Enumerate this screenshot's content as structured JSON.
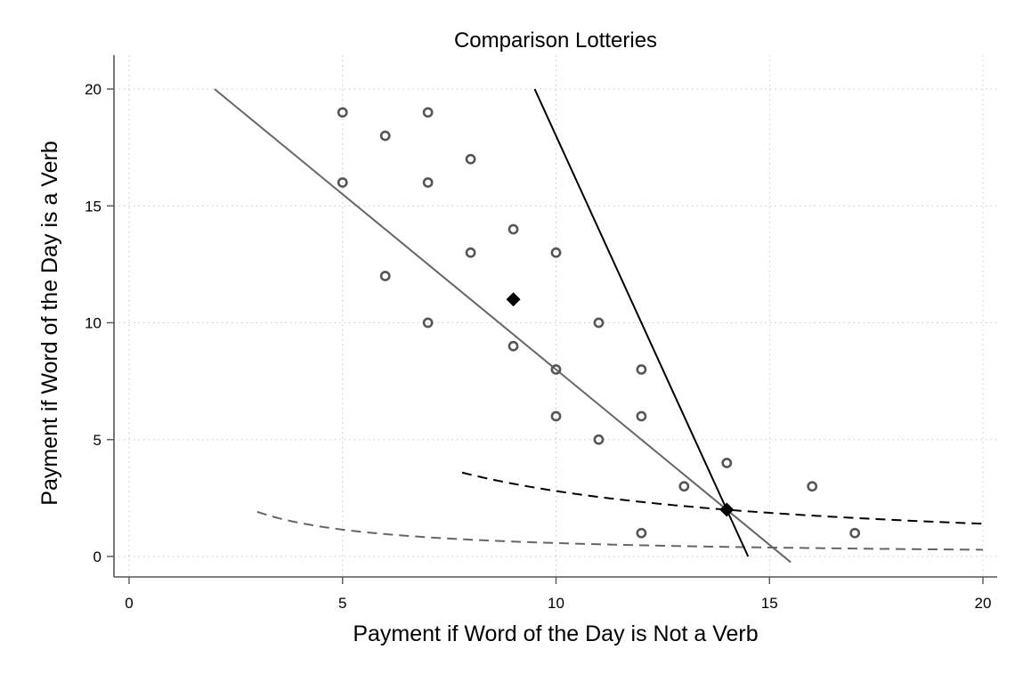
{
  "chart_data": {
    "type": "scatter",
    "title": "Comparison Lotteries",
    "xlabel": "Payment if Word of the Day is Not a Verb",
    "ylabel": "Payment if Word of the Day is a Verb",
    "xlim": [
      -0.6,
      20.4
    ],
    "ylim": [
      -0.9,
      21.4
    ],
    "xticks": [
      "0",
      "5",
      "10",
      "15",
      "20"
    ],
    "yticks": [
      "0",
      "5",
      "10",
      "15",
      "20"
    ],
    "grid": true,
    "legend": "none",
    "points": [
      {
        "x": 5,
        "y": 19
      },
      {
        "x": 5,
        "y": 16
      },
      {
        "x": 6,
        "y": 18
      },
      {
        "x": 6,
        "y": 12
      },
      {
        "x": 7,
        "y": 19
      },
      {
        "x": 7,
        "y": 16
      },
      {
        "x": 7,
        "y": 10
      },
      {
        "x": 8,
        "y": 17
      },
      {
        "x": 8,
        "y": 13
      },
      {
        "x": 9,
        "y": 14
      },
      {
        "x": 9,
        "y": 9
      },
      {
        "x": 10,
        "y": 13
      },
      {
        "x": 10,
        "y": 8
      },
      {
        "x": 10,
        "y": 6
      },
      {
        "x": 11,
        "y": 10
      },
      {
        "x": 11,
        "y": 5
      },
      {
        "x": 12,
        "y": 8
      },
      {
        "x": 12,
        "y": 6
      },
      {
        "x": 12,
        "y": 1
      },
      {
        "x": 13,
        "y": 3
      },
      {
        "x": 14,
        "y": 4
      },
      {
        "x": 16,
        "y": 3
      },
      {
        "x": 17,
        "y": 1
      }
    ],
    "highlighted_points": [
      {
        "x": 9,
        "y": 11
      },
      {
        "x": 14,
        "y": 2
      }
    ],
    "reference_lines": [
      {
        "style": "solid",
        "color": "#666666",
        "points": [
          [
            2,
            20
          ],
          [
            15.5,
            -0.25
          ]
        ]
      },
      {
        "style": "solid",
        "color": "#000000",
        "points": [
          [
            9.5,
            20
          ],
          [
            14.5,
            0
          ]
        ]
      }
    ],
    "reference_curves": [
      {
        "style": "dashed",
        "color": "#000000",
        "k": 28,
        "x_range": [
          7.8,
          20
        ]
      },
      {
        "style": "dashed",
        "color": "#666666",
        "k": 5.74,
        "x_range": [
          3.0,
          20
        ]
      }
    ]
  }
}
